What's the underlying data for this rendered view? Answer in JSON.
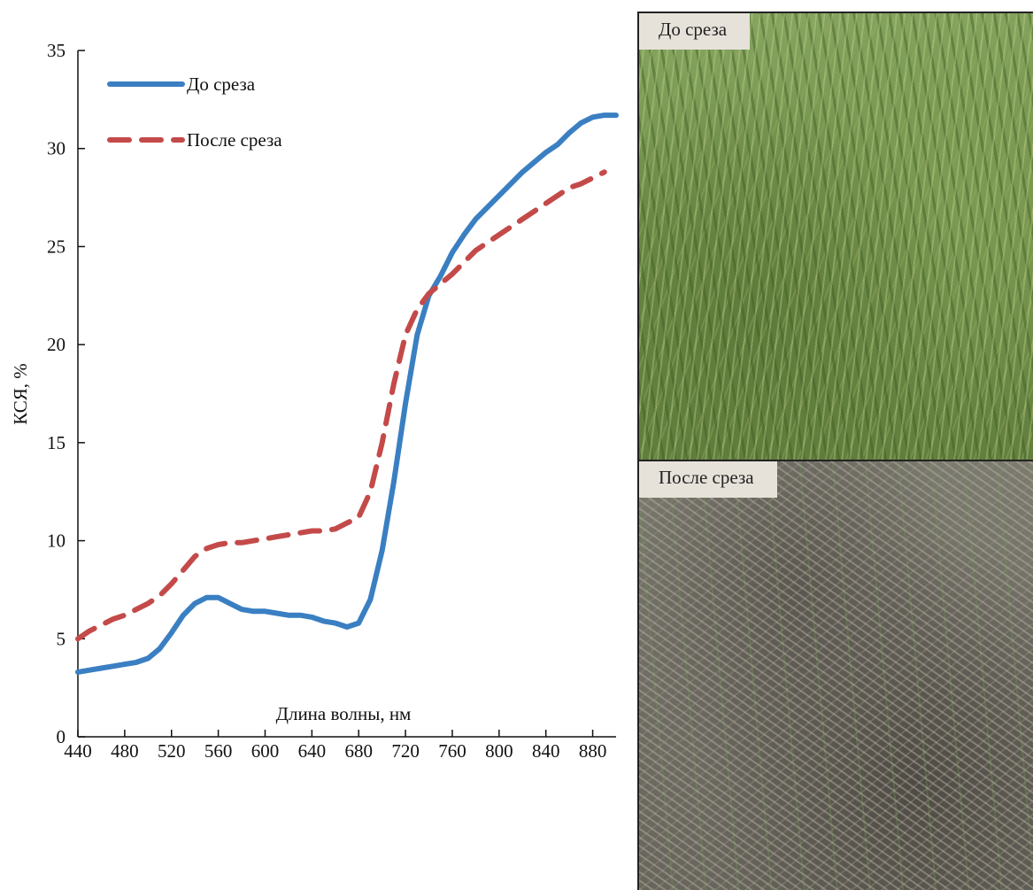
{
  "chart_data": {
    "type": "line",
    "xlabel": "Длина волны, нм",
    "ylabel": "КСЯ, %",
    "xlim": [
      440,
      900
    ],
    "ylim": [
      0,
      35
    ],
    "xticks": [
      "440",
      "480",
      "520",
      "560",
      "600",
      "640",
      "680",
      "720",
      "760",
      "800",
      "840",
      "880"
    ],
    "yticks": [
      "0",
      "5",
      "10",
      "15",
      "20",
      "25",
      "30",
      "35"
    ],
    "grid": false,
    "legend_position": "top-left",
    "series": [
      {
        "name": "До среза",
        "color": "#3a7fc2",
        "style": "solid",
        "x": [
          440,
          450,
          460,
          470,
          480,
          490,
          500,
          510,
          520,
          530,
          540,
          550,
          560,
          570,
          580,
          590,
          600,
          610,
          620,
          630,
          640,
          650,
          660,
          670,
          680,
          690,
          700,
          710,
          720,
          730,
          740,
          750,
          760,
          770,
          780,
          790,
          800,
          810,
          820,
          830,
          840,
          850,
          860,
          870,
          880,
          890,
          900
        ],
        "y": [
          3.3,
          3.4,
          3.5,
          3.6,
          3.7,
          3.8,
          4.0,
          4.5,
          5.3,
          6.2,
          6.8,
          7.1,
          7.1,
          6.8,
          6.5,
          6.4,
          6.4,
          6.3,
          6.2,
          6.2,
          6.1,
          5.9,
          5.8,
          5.6,
          5.8,
          7.0,
          9.5,
          13.0,
          17.0,
          20.5,
          22.5,
          23.5,
          24.7,
          25.6,
          26.4,
          27.0,
          27.6,
          28.2,
          28.8,
          29.3,
          29.8,
          30.2,
          30.8,
          31.3,
          31.6,
          31.7,
          31.7
        ]
      },
      {
        "name": "После среза",
        "color": "#c44a4a",
        "style": "dashed",
        "x": [
          440,
          450,
          460,
          470,
          480,
          490,
          500,
          510,
          520,
          530,
          540,
          550,
          560,
          570,
          580,
          590,
          600,
          610,
          620,
          630,
          640,
          650,
          660,
          670,
          680,
          690,
          700,
          710,
          720,
          730,
          740,
          750,
          760,
          770,
          780,
          790,
          800,
          810,
          820,
          830,
          840,
          850,
          860,
          870,
          880,
          890
        ],
        "y": [
          5.0,
          5.4,
          5.7,
          6.0,
          6.2,
          6.5,
          6.8,
          7.2,
          7.8,
          8.5,
          9.2,
          9.6,
          9.8,
          9.9,
          9.9,
          10.0,
          10.1,
          10.2,
          10.3,
          10.4,
          10.5,
          10.5,
          10.6,
          10.9,
          11.2,
          12.5,
          15.0,
          18.0,
          20.5,
          21.8,
          22.6,
          23.1,
          23.6,
          24.2,
          24.8,
          25.2,
          25.6,
          26.0,
          26.4,
          26.8,
          27.2,
          27.6,
          28.0,
          28.2,
          28.5,
          28.8
        ]
      }
    ]
  },
  "photos": {
    "before_label": "До среза",
    "after_label": "После среза"
  }
}
